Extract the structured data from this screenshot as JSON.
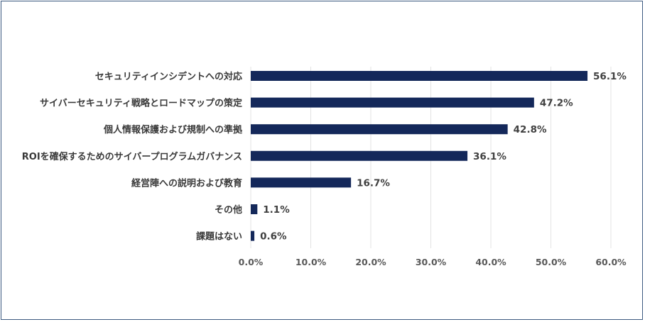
{
  "chart_data": {
    "type": "bar",
    "orientation": "horizontal",
    "title": "",
    "xlabel": "",
    "ylabel": "",
    "categories": [
      "セキュリティインシデントへの対応",
      "サイバーセキュリティ戦略とロードマップの策定",
      "個人情報保護および規制への準拠",
      "ROIを確保するためのサイバープログラムガバナンス",
      "経営陣への説明および教育",
      "その他",
      "課題はない"
    ],
    "values": [
      56.1,
      47.2,
      42.8,
      36.1,
      16.7,
      1.1,
      0.6
    ],
    "value_labels": [
      "56.1%",
      "47.2%",
      "42.8%",
      "36.1%",
      "16.7%",
      "1.1%",
      "0.6%"
    ],
    "xlim": [
      0,
      60
    ],
    "ticks": [
      0,
      10,
      20,
      30,
      40,
      50,
      60
    ],
    "tick_labels": [
      "0.0%",
      "10.0%",
      "20.0%",
      "30.0%",
      "40.0%",
      "50.0%",
      "60.0%"
    ],
    "grid": true,
    "bar_color": "#14285a"
  }
}
